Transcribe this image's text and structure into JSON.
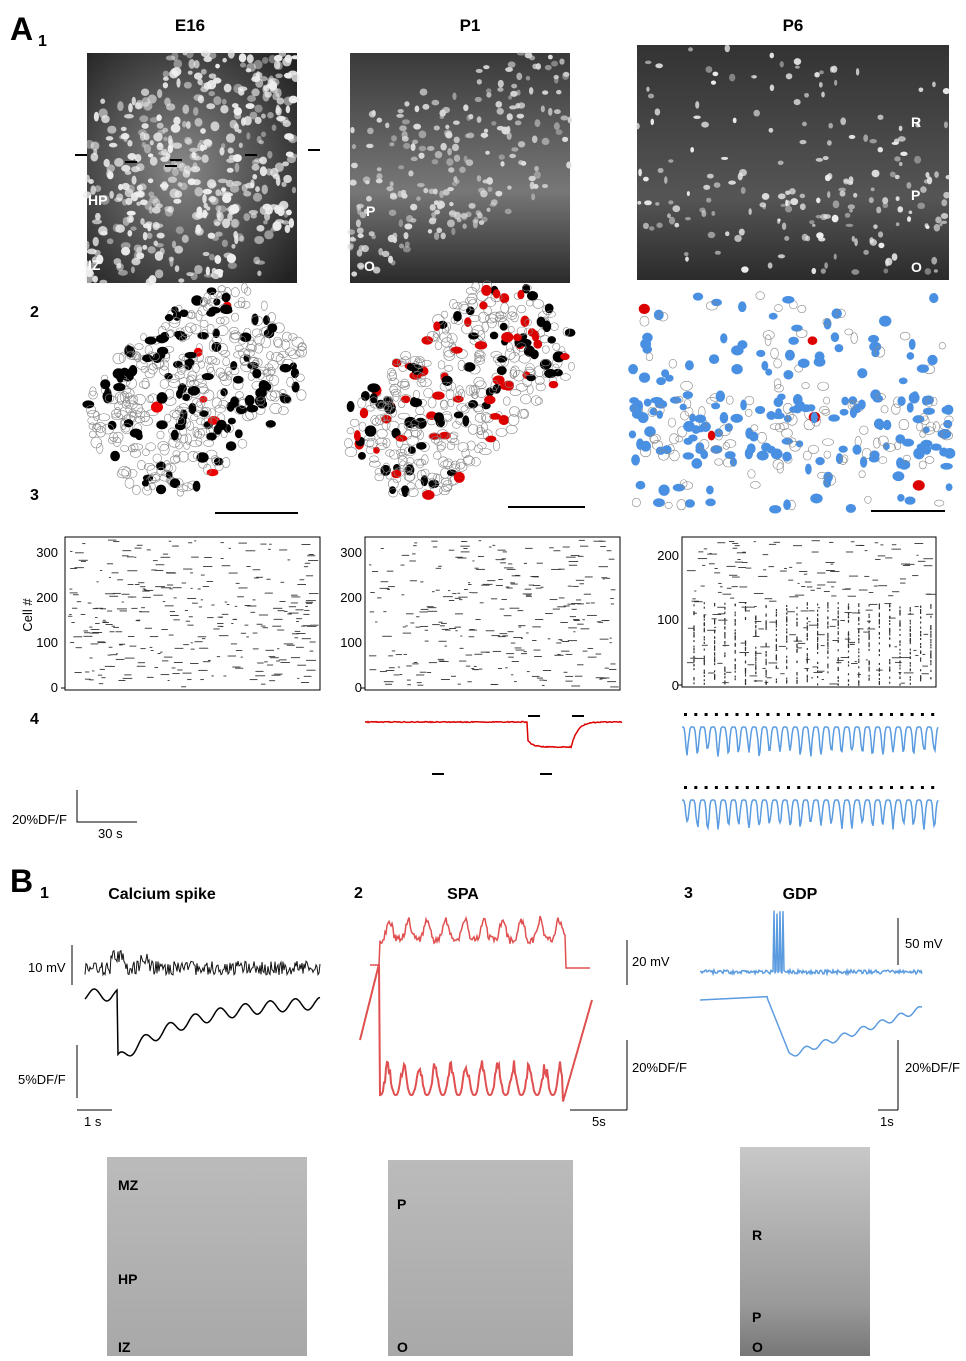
{
  "panel_a": {
    "label": "A",
    "sublabel": "1",
    "columns": [
      {
        "title": "E16",
        "image_labels": [
          "HP",
          "IZ"
        ],
        "raster_ticks": [
          "300",
          "200",
          "100",
          "0"
        ]
      },
      {
        "title": "P1",
        "image_labels": [
          "P",
          "O"
        ],
        "raster_ticks": [
          "300",
          "200",
          "100",
          "0"
        ]
      },
      {
        "title": "P6",
        "image_labels": [
          "R",
          "P",
          "O"
        ],
        "raster_ticks": [
          "200",
          "100",
          "0"
        ]
      }
    ],
    "row_labels": [
      "2",
      "3",
      "4"
    ],
    "raster_axis_label": "Cell #",
    "scale_amplitude": "20%DF/F",
    "scale_time": "30 s"
  },
  "panel_b": {
    "label": "B",
    "columns": [
      {
        "number": "1",
        "title": "Calcium spike",
        "voltage_scale": "10 mV",
        "fluorescence_scale": "5%DF/F",
        "time_scale": "1 s",
        "image_labels": [
          "MZ",
          "HP",
          "IZ"
        ]
      },
      {
        "number": "2",
        "title": "SPA",
        "voltage_scale": "20 mV",
        "fluorescence_scale": "20%DF/F",
        "time_scale": "5s",
        "image_labels": [
          "P",
          "O"
        ]
      },
      {
        "number": "3",
        "title": "GDP",
        "voltage_scale": "50 mV",
        "fluorescence_scale": "20%DF/F",
        "time_scale": "1s",
        "image_labels": [
          "R",
          "P",
          "O"
        ]
      }
    ]
  }
}
